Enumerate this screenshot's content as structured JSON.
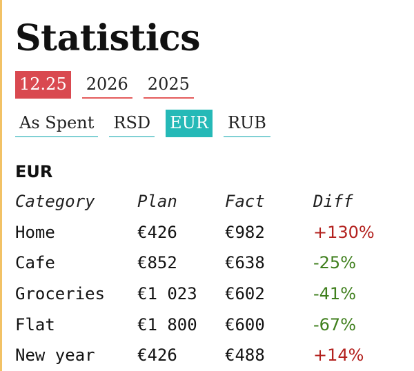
{
  "page": {
    "title": "Statistics",
    "accent_color": "#f2c266"
  },
  "periods": {
    "active_color": "#d94950",
    "items": [
      {
        "label": "12.25",
        "active": true
      },
      {
        "label": "2026",
        "active": false
      },
      {
        "label": "2025",
        "active": false
      }
    ]
  },
  "currencies": {
    "active_color": "#25b9b7",
    "items": [
      {
        "label": "As Spent",
        "active": false
      },
      {
        "label": "RSD",
        "active": false
      },
      {
        "label": "EUR",
        "active": true
      },
      {
        "label": "RUB",
        "active": false
      }
    ]
  },
  "section": {
    "title": "EUR"
  },
  "table": {
    "headers": {
      "category": "Category",
      "plan": "Plan",
      "fact": "Fact",
      "diff": "Diff"
    },
    "rows": [
      {
        "category": "Home",
        "plan": "€426",
        "fact": "€982",
        "diff": "+130%",
        "trend": "up"
      },
      {
        "category": "Cafe",
        "plan": "€852",
        "fact": "€638",
        "diff": "-25%",
        "trend": "down"
      },
      {
        "category": "Groceries",
        "plan": "€1 023",
        "fact": "€602",
        "diff": "-41%",
        "trend": "down"
      },
      {
        "category": "Flat",
        "plan": "€1 800",
        "fact": "€600",
        "diff": "-67%",
        "trend": "down"
      },
      {
        "category": "New year",
        "plan": "€426",
        "fact": "€488",
        "diff": "+14%",
        "trend": "up"
      }
    ],
    "colors": {
      "up": "#b3211e",
      "down": "#3f7f1d"
    }
  }
}
